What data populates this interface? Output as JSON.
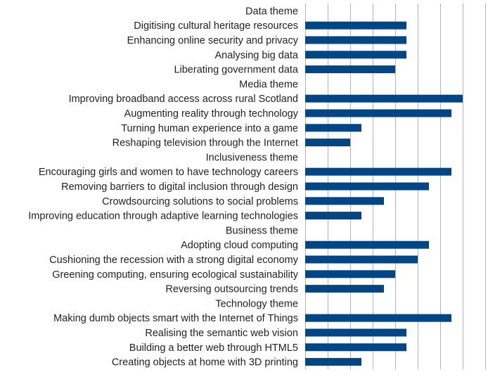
{
  "chart_data": {
    "type": "bar",
    "orientation": "horizontal",
    "title": "",
    "xlabel": "",
    "ylabel": "",
    "grid": true,
    "legend": "none",
    "bar_color": "#004586",
    "xlim": [
      0,
      16
    ],
    "x_tick_step": 2,
    "categories": [
      "Data theme",
      "Digitising cultural heritage resources",
      "Enhancing online security and privacy",
      "Analysing big data",
      "Liberating government data",
      "Media theme",
      "Improving broadband access across rural Scotland",
      "Augmenting reality through technology",
      "Turning human experience into a game",
      "Reshaping television through the Internet",
      "Inclusiveness theme",
      "Encouraging girls and women to have technology careers",
      "Removing barriers to digital inclusion through design",
      "Crowdsourcing solutions to social problems",
      "Improving education through adaptive learning technologies",
      "Business theme",
      "Adopting cloud computing",
      "Cushioning the recession with a strong digital economy",
      "Greening computing, ensuring ecological sustainability",
      "Reversing outsourcing trends",
      "Technology theme",
      "Making dumb objects smart with the Internet of Things",
      "Realising the semantic web vision",
      "Building a better web through HTML5",
      "Creating objects at home with 3D printing"
    ],
    "values": [
      0,
      9,
      9,
      9,
      8,
      0,
      14,
      13,
      5,
      4,
      0,
      13,
      11,
      7,
      5,
      0,
      11,
      10,
      8,
      7,
      0,
      13,
      9,
      9,
      5
    ]
  }
}
